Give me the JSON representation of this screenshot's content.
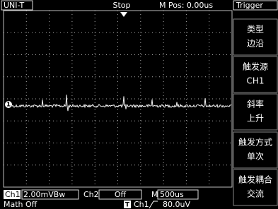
{
  "header": {
    "brand": "UNI-T",
    "status": "Stop",
    "position": "M Pos: 0.00us"
  },
  "menu": {
    "title": "Trigger",
    "items": [
      {
        "label": "类型",
        "value": "边沿"
      },
      {
        "label": "触发源",
        "value": "CH1"
      },
      {
        "label": "斜率",
        "value": "上升"
      },
      {
        "label": "触发方式",
        "value": "单次"
      },
      {
        "label": "触发耦合",
        "value": "交流"
      }
    ]
  },
  "markers": {
    "trace": "1",
    "trigger": "T"
  },
  "status_bar": {
    "ch1_label": "Ch1",
    "ch1_scale": "2.00mVBw",
    "ch2_label": "Ch2",
    "ch2_state": "Off",
    "timebase_label": "M",
    "timebase": "500us",
    "math": "Math Off",
    "trigger_source": "Ch1",
    "trigger_level": "80.0uV"
  }
}
